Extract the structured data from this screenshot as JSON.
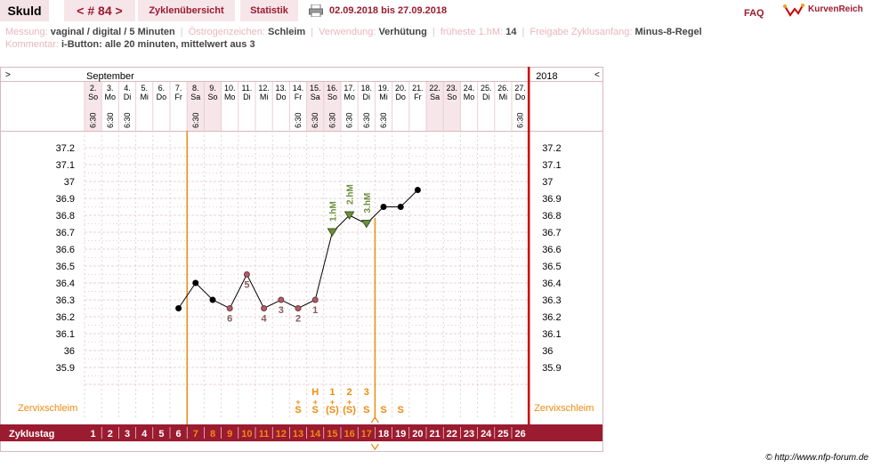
{
  "header": {
    "name": "Skuld",
    "cycle_nav": "< # 84 >",
    "cycle_overview": "Zyklenübersicht",
    "statistics": "Statistik",
    "printer_icon": "printer-icon",
    "date_range": "02.09.2018 bis 27.09.2018",
    "faq": "FAQ",
    "logo_text": "KurvenReich"
  },
  "info": {
    "messung_label": "Messung:",
    "messung_value": "vaginal / digital / 5 Minuten",
    "oestrogen_label": "Östrogenzeichen:",
    "oestrogen_value": "Schleim",
    "verwendung_label": "Verwendung:",
    "verwendung_value": "Verhütung",
    "fruehest_label": "früheste 1.hM:",
    "fruehest_value": "14",
    "freigabe_label": "Freigabe Zyklusanfang:",
    "freigabe_value": "Minus-8-Regel",
    "kommentar_label": "Kommentar:",
    "kommentar_value": "i-Button: alle 20 minuten, mittelwert aus 3"
  },
  "chart_data": {
    "type": "line",
    "month_label": "September",
    "year_label": "2018",
    "left_arrow": ">",
    "right_arrow": "<",
    "days": [
      {
        "d": "2.",
        "w": "So",
        "t": "6:30",
        "shade": true
      },
      {
        "d": "3.",
        "w": "Mo",
        "t": "6:30",
        "shade": false
      },
      {
        "d": "4.",
        "w": "Di",
        "t": "6:30",
        "shade": false
      },
      {
        "d": "5.",
        "w": "Mi",
        "t": "",
        "shade": false
      },
      {
        "d": "6.",
        "w": "Do",
        "t": "",
        "shade": false
      },
      {
        "d": "7.",
        "w": "Fr",
        "t": "",
        "shade": false
      },
      {
        "d": "8.",
        "w": "Sa",
        "t": "6:30",
        "shade": true
      },
      {
        "d": "9.",
        "w": "So",
        "t": "",
        "shade": true
      },
      {
        "d": "10.",
        "w": "Mo",
        "t": "",
        "shade": false
      },
      {
        "d": "11.",
        "w": "Di",
        "t": "",
        "shade": false
      },
      {
        "d": "12.",
        "w": "Mi",
        "t": "",
        "shade": false
      },
      {
        "d": "13.",
        "w": "Do",
        "t": "",
        "shade": false
      },
      {
        "d": "14.",
        "w": "Fr",
        "t": "6:30",
        "shade": false
      },
      {
        "d": "15.",
        "w": "Sa",
        "t": "6:30",
        "shade": true
      },
      {
        "d": "16.",
        "w": "So",
        "t": "6:30",
        "shade": true
      },
      {
        "d": "17.",
        "w": "Mo",
        "t": "6:30",
        "shade": false
      },
      {
        "d": "18.",
        "w": "Di",
        "t": "6:30",
        "shade": false
      },
      {
        "d": "19.",
        "w": "Mi",
        "t": "6:30",
        "shade": false
      },
      {
        "d": "20.",
        "w": "Do",
        "t": "",
        "shade": false
      },
      {
        "d": "21.",
        "w": "Fr",
        "t": "",
        "shade": false
      },
      {
        "d": "22.",
        "w": "Sa",
        "t": "",
        "shade": true
      },
      {
        "d": "23.",
        "w": "So",
        "t": "",
        "shade": true
      },
      {
        "d": "24.",
        "w": "Mo",
        "t": "",
        "shade": false
      },
      {
        "d": "25.",
        "w": "Di",
        "t": "",
        "shade": false
      },
      {
        "d": "26.",
        "w": "Mi",
        "t": "",
        "shade": false
      },
      {
        "d": "27.",
        "w": "Do",
        "t": "6:30",
        "shade": false
      }
    ],
    "y_ticks": [
      "37.2",
      "37.1",
      "37",
      "36.9",
      "36.8",
      "36.7",
      "36.6",
      "36.5",
      "36.4",
      "36.3",
      "36.2",
      "36.1",
      "36",
      "35.9"
    ],
    "ylim": [
      35.8,
      37.3
    ],
    "temps": [
      {
        "day": 6,
        "v": 36.25,
        "fill": "#000000",
        "label": "",
        "mark": ""
      },
      {
        "day": 7,
        "v": 36.4,
        "fill": "#000000",
        "label": "",
        "mark": ""
      },
      {
        "day": 8,
        "v": 36.3,
        "fill": "#000000",
        "label": "",
        "mark": ""
      },
      {
        "day": 9,
        "v": 36.25,
        "fill": "#a8606a",
        "label": "6",
        "pos": "below",
        "mark": ""
      },
      {
        "day": 10,
        "v": 36.45,
        "fill": "#a8606a",
        "label": "5",
        "pos": "below",
        "mark": ""
      },
      {
        "day": 11,
        "v": 36.25,
        "fill": "#a8606a",
        "label": "4",
        "pos": "below",
        "mark": ""
      },
      {
        "day": 12,
        "v": 36.3,
        "fill": "#a8606a",
        "label": "3",
        "pos": "below",
        "mark": ""
      },
      {
        "day": 13,
        "v": 36.25,
        "fill": "#a8606a",
        "label": "2",
        "pos": "below",
        "mark": ""
      },
      {
        "day": 14,
        "v": 36.3,
        "fill": "#a8606a",
        "label": "1",
        "pos": "below",
        "mark": ""
      },
      {
        "day": 15,
        "v": 36.7,
        "fill": "#6d8f3d",
        "label": "1.hM",
        "pos": "above",
        "mark": "tri"
      },
      {
        "day": 16,
        "v": 36.8,
        "fill": "#6d8f3d",
        "label": "2.hM",
        "pos": "above",
        "mark": "tri"
      },
      {
        "day": 17,
        "v": 36.75,
        "fill": "#6d8f3d",
        "label": "3.hM",
        "pos": "above",
        "mark": "tri"
      },
      {
        "day": 18,
        "v": 36.85,
        "fill": "#000000",
        "label": "",
        "mark": ""
      },
      {
        "day": 19,
        "v": 36.85,
        "fill": "#000000",
        "label": "",
        "mark": ""
      },
      {
        "day": 20,
        "v": 36.95,
        "fill": "#000000",
        "label": "",
        "mark": ""
      }
    ],
    "mucus_label": "Zervixschleim",
    "mucus": [
      {
        "day": 13,
        "sym": "S",
        "top": "+"
      },
      {
        "day": 14,
        "sym": "S",
        "top": "+",
        "above": "H"
      },
      {
        "day": 15,
        "sym": "(S)",
        "top": "+",
        "above": "1"
      },
      {
        "day": 16,
        "sym": "(S)",
        "top": "+",
        "above": "2"
      },
      {
        "day": 17,
        "sym": "S",
        "top": "",
        "above": "3"
      },
      {
        "day": 18,
        "sym": "S",
        "top": ""
      },
      {
        "day": 19,
        "sym": "S",
        "top": ""
      }
    ],
    "cycle_label": "Zyklustag",
    "cycle_days": [
      "1",
      "2",
      "3",
      "4",
      "5",
      "6",
      "7",
      "8",
      "9",
      "10",
      "11",
      "12",
      "13",
      "14",
      "15",
      "16",
      "17",
      "18",
      "19",
      "20",
      "21",
      "22",
      "23",
      "24",
      "25",
      "26"
    ],
    "orange_from": 7,
    "orange_to": 17,
    "colors": {
      "accent": "#9b1b30",
      "orange": "#f08a10",
      "grid": "#e8cfd4",
      "shade": "#f6e6ea",
      "green": "#6d8f3d",
      "red": "#cc0000"
    }
  },
  "footer": {
    "copyright": "© http://www.nfp-forum.de"
  }
}
